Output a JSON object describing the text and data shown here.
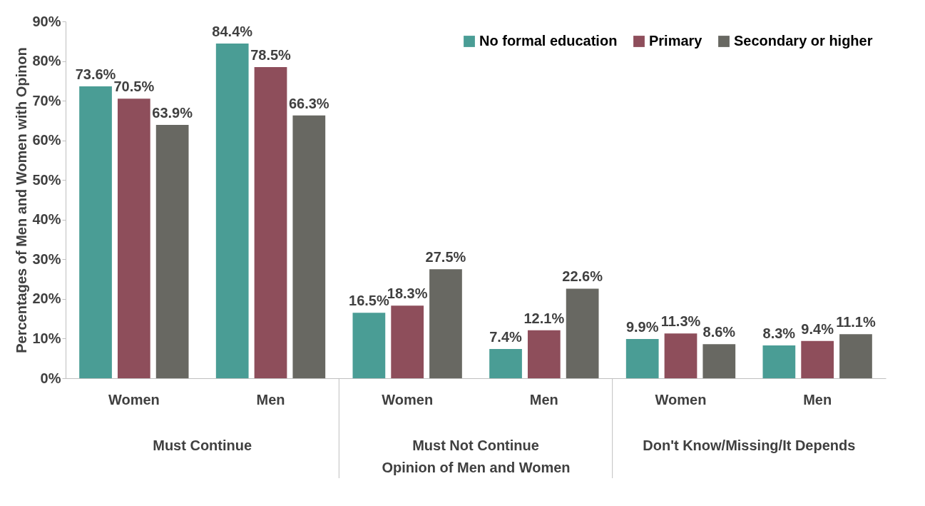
{
  "chart_data": {
    "type": "bar",
    "categories": [
      "Women",
      "Men",
      "Women",
      "Men",
      "Women",
      "Men"
    ],
    "series": [
      {
        "name": "No formal education",
        "color": "#4a9d95",
        "values": [
          73.6,
          84.4,
          16.5,
          7.4,
          9.9,
          8.3
        ],
        "value_labels": [
          "73.6%",
          "84.4%",
          "16.5%",
          "7.4%",
          "9.9%",
          "8.3%"
        ]
      },
      {
        "name": "Primary",
        "color": "#8e4e5b",
        "values": [
          70.5,
          78.5,
          18.3,
          12.1,
          11.3,
          9.4
        ],
        "value_labels": [
          "70.5%",
          "78.5%",
          "18.3%",
          "12.1%",
          "11.3%",
          "9.4%"
        ]
      },
      {
        "name": "Secondary or higher",
        "color": "#686862",
        "values": [
          63.9,
          66.3,
          27.5,
          22.6,
          8.6,
          11.1
        ],
        "value_labels": [
          "63.9%",
          "66.3%",
          "27.5%",
          "22.6%",
          "8.6%",
          "11.1%"
        ]
      }
    ],
    "annotations": [
      "Must Continue",
      "Must Not Continue",
      "Don't Know/Missing/It Depends"
    ],
    "xlabel": "Opinion of Men and Women",
    "ylabel": "Percentages of Men and Women with Opinon",
    "ylim": [
      0,
      90
    ],
    "yticks": [
      {
        "value": 0,
        "label": "0%"
      },
      {
        "value": 10,
        "label": "10%"
      },
      {
        "value": 20,
        "label": "20%"
      },
      {
        "value": 30,
        "label": "30%"
      },
      {
        "value": 40,
        "label": "40%"
      },
      {
        "value": 50,
        "label": "50%"
      },
      {
        "value": 60,
        "label": "60%"
      },
      {
        "value": 70,
        "label": "70%"
      },
      {
        "value": 80,
        "label": "80%"
      },
      {
        "value": 90,
        "label": "90%"
      }
    ],
    "grid": false,
    "legend": "top right"
  }
}
